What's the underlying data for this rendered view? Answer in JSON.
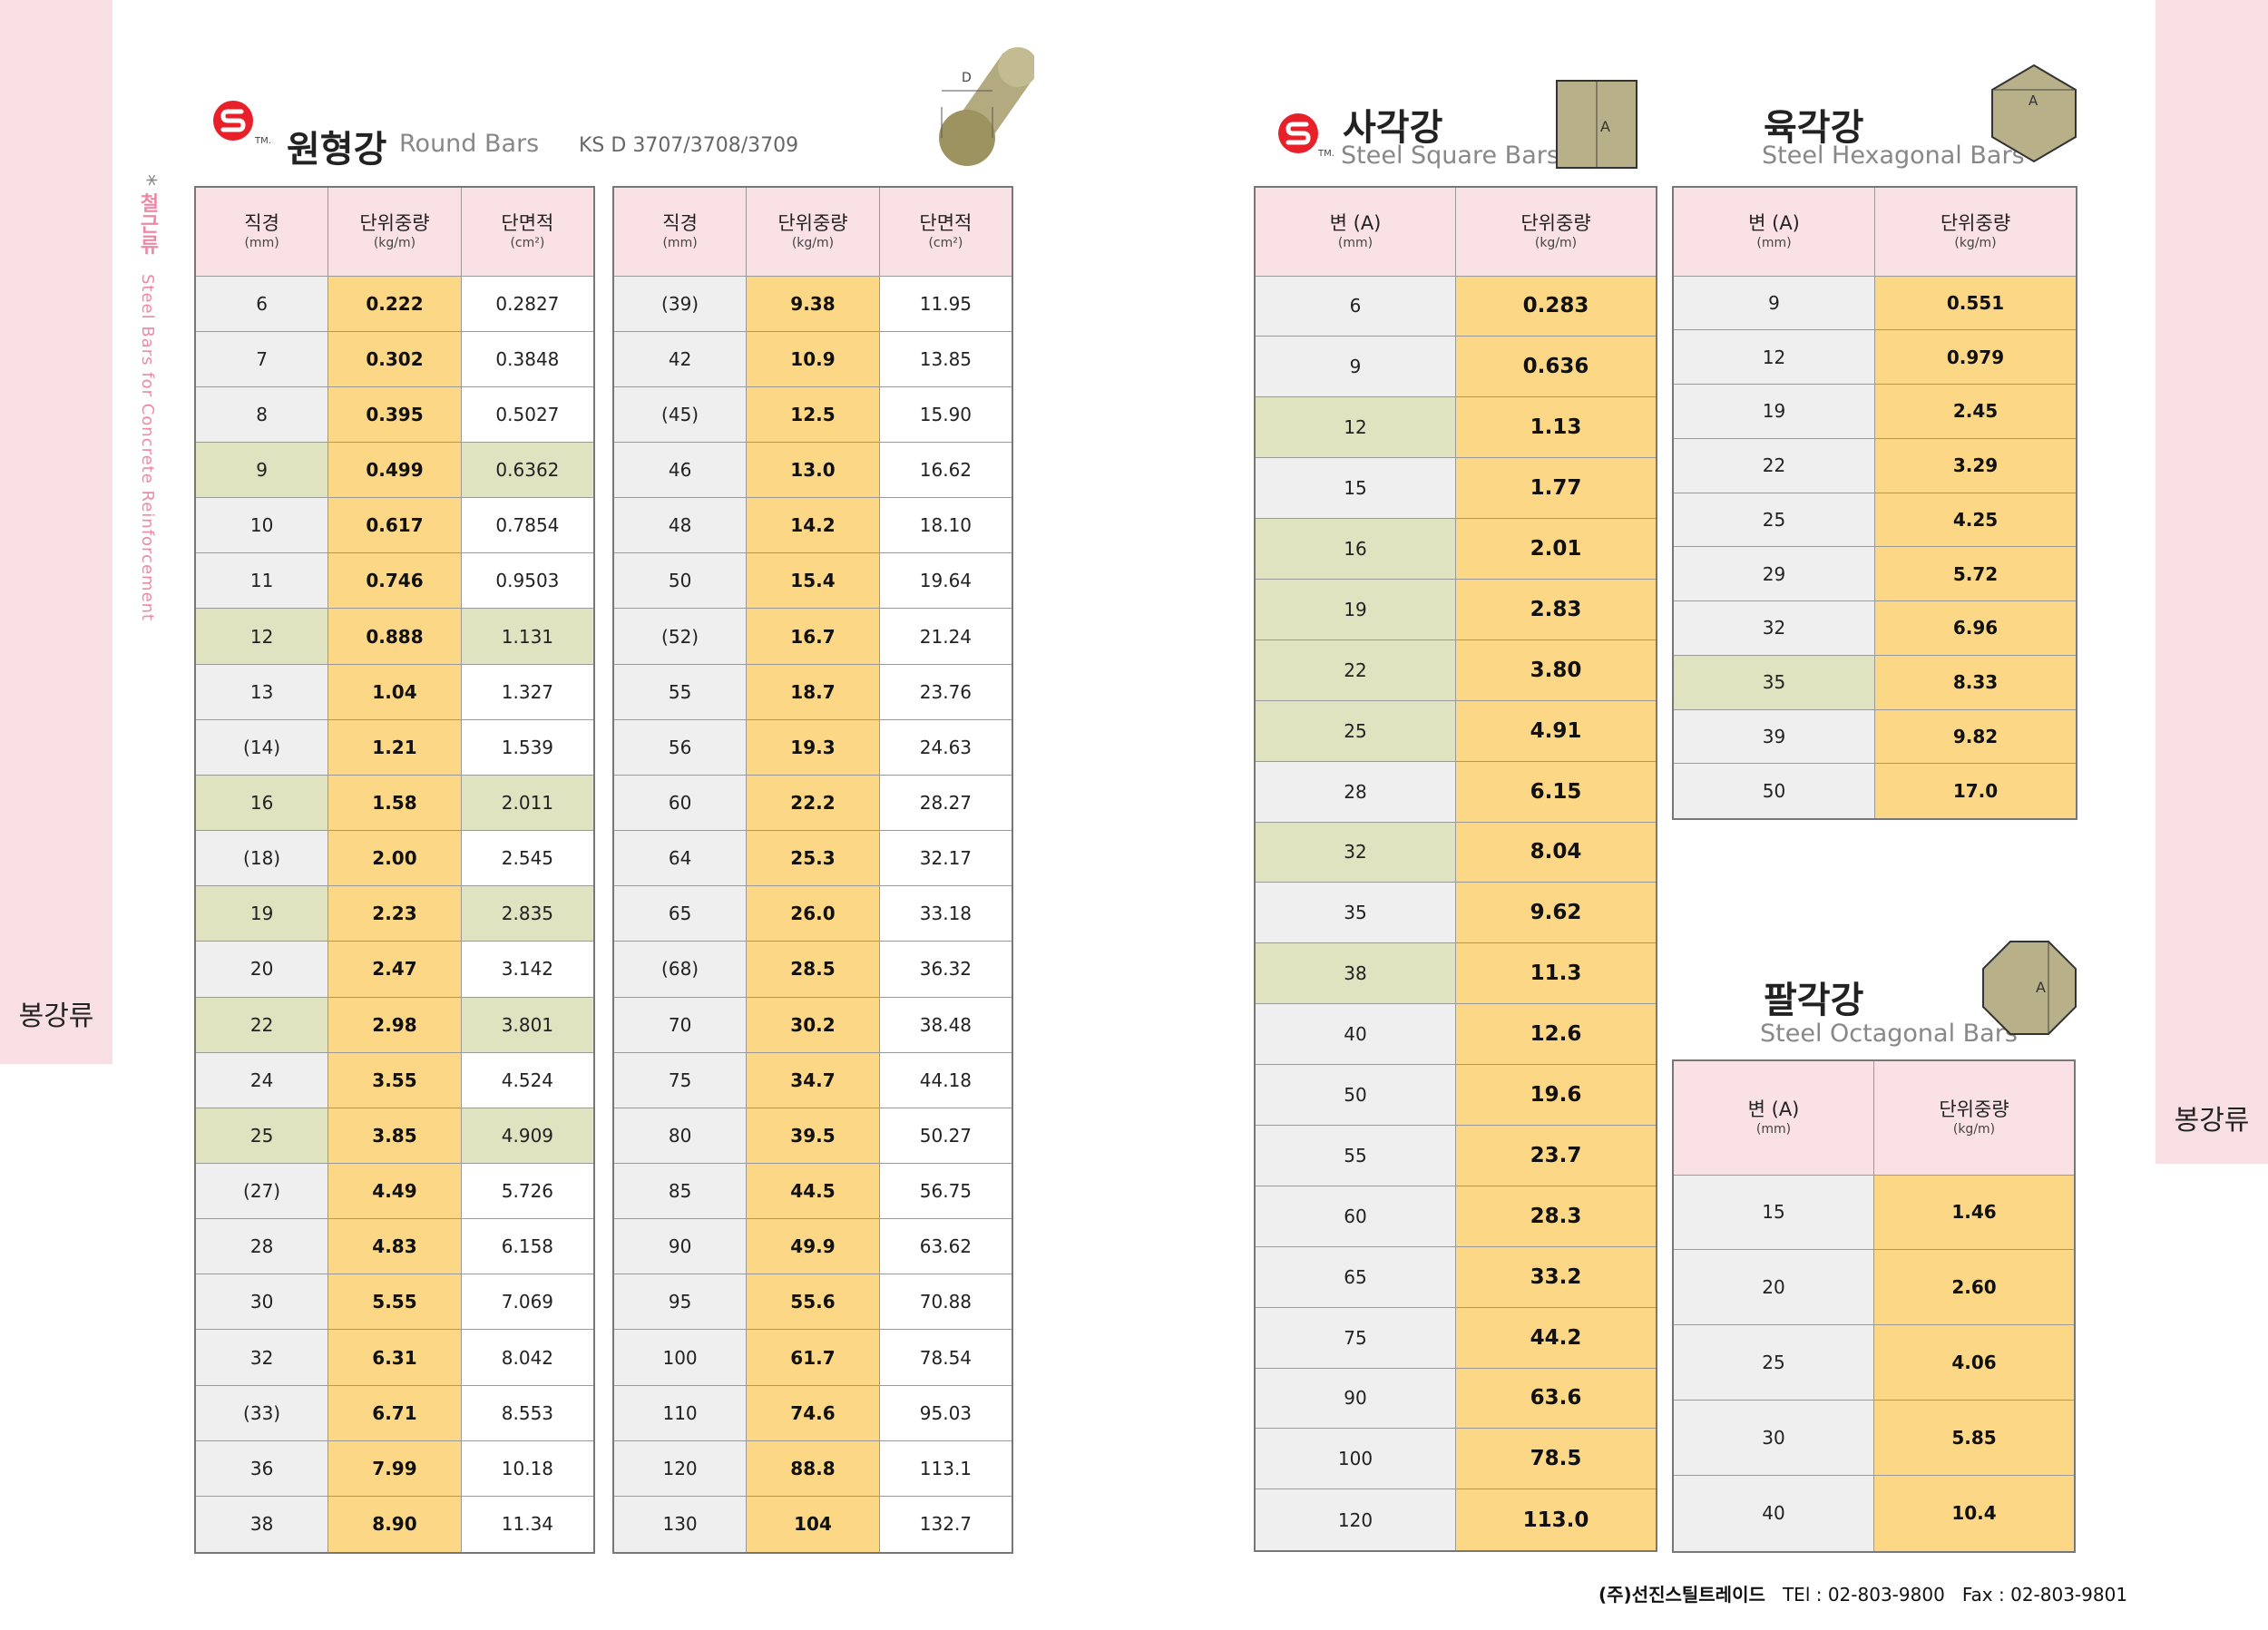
{
  "colors": {
    "pink": "#f8dfe4",
    "header": "#fae1e6",
    "yellow": "#fcd785",
    "green": "#dfe3c0",
    "gray": "#efefef",
    "logo": "#e8202a"
  },
  "side_label_left": "봉강류",
  "side_label_right": "봉강류",
  "vertical_note": {
    "star": "*",
    "ko": "철근류",
    "en": "Steel Bars for Concrete Reinforcement"
  },
  "round": {
    "title_ko": "원형강",
    "title_en": "Round Bars",
    "standard": "KS D 3707/3708/3709",
    "tm": "TM.",
    "diagram_label": "D",
    "headers": [
      {
        "main": "직경",
        "unit": "(mm)"
      },
      {
        "main": "단위중량",
        "unit": "(kg/m)"
      },
      {
        "main": "단면적",
        "unit": "(cm²)"
      }
    ],
    "left_rows": [
      {
        "c": [
          "6",
          "0.222",
          "0.2827"
        ],
        "g": false
      },
      {
        "c": [
          "7",
          "0.302",
          "0.3848"
        ],
        "g": false
      },
      {
        "c": [
          "8",
          "0.395",
          "0.5027"
        ],
        "g": false
      },
      {
        "c": [
          "9",
          "0.499",
          "0.6362"
        ],
        "g": true
      },
      {
        "c": [
          "10",
          "0.617",
          "0.7854"
        ],
        "g": false
      },
      {
        "c": [
          "11",
          "0.746",
          "0.9503"
        ],
        "g": false
      },
      {
        "c": [
          "12",
          "0.888",
          "1.131"
        ],
        "g": true
      },
      {
        "c": [
          "13",
          "1.04",
          "1.327"
        ],
        "g": false
      },
      {
        "c": [
          "(14)",
          "1.21",
          "1.539"
        ],
        "g": false
      },
      {
        "c": [
          "16",
          "1.58",
          "2.011"
        ],
        "g": true
      },
      {
        "c": [
          "(18)",
          "2.00",
          "2.545"
        ],
        "g": false
      },
      {
        "c": [
          "19",
          "2.23",
          "2.835"
        ],
        "g": true
      },
      {
        "c": [
          "20",
          "2.47",
          "3.142"
        ],
        "g": false
      },
      {
        "c": [
          "22",
          "2.98",
          "3.801"
        ],
        "g": true
      },
      {
        "c": [
          "24",
          "3.55",
          "4.524"
        ],
        "g": false
      },
      {
        "c": [
          "25",
          "3.85",
          "4.909"
        ],
        "g": true
      },
      {
        "c": [
          "(27)",
          "4.49",
          "5.726"
        ],
        "g": false
      },
      {
        "c": [
          "28",
          "4.83",
          "6.158"
        ],
        "g": false
      },
      {
        "c": [
          "30",
          "5.55",
          "7.069"
        ],
        "g": false
      },
      {
        "c": [
          "32",
          "6.31",
          "8.042"
        ],
        "g": false
      },
      {
        "c": [
          "(33)",
          "6.71",
          "8.553"
        ],
        "g": false
      },
      {
        "c": [
          "36",
          "7.99",
          "10.18"
        ],
        "g": false
      },
      {
        "c": [
          "38",
          "8.90",
          "11.34"
        ],
        "g": false
      }
    ],
    "right_rows": [
      {
        "c": [
          "(39)",
          "9.38",
          "11.95"
        ],
        "g": false
      },
      {
        "c": [
          "42",
          "10.9",
          "13.85"
        ],
        "g": false
      },
      {
        "c": [
          "(45)",
          "12.5",
          "15.90"
        ],
        "g": false
      },
      {
        "c": [
          "46",
          "13.0",
          "16.62"
        ],
        "g": false
      },
      {
        "c": [
          "48",
          "14.2",
          "18.10"
        ],
        "g": false
      },
      {
        "c": [
          "50",
          "15.4",
          "19.64"
        ],
        "g": false
      },
      {
        "c": [
          "(52)",
          "16.7",
          "21.24"
        ],
        "g": false
      },
      {
        "c": [
          "55",
          "18.7",
          "23.76"
        ],
        "g": false
      },
      {
        "c": [
          "56",
          "19.3",
          "24.63"
        ],
        "g": false
      },
      {
        "c": [
          "60",
          "22.2",
          "28.27"
        ],
        "g": false
      },
      {
        "c": [
          "64",
          "25.3",
          "32.17"
        ],
        "g": false
      },
      {
        "c": [
          "65",
          "26.0",
          "33.18"
        ],
        "g": false
      },
      {
        "c": [
          "(68)",
          "28.5",
          "36.32"
        ],
        "g": false
      },
      {
        "c": [
          "70",
          "30.2",
          "38.48"
        ],
        "g": false
      },
      {
        "c": [
          "75",
          "34.7",
          "44.18"
        ],
        "g": false
      },
      {
        "c": [
          "80",
          "39.5",
          "50.27"
        ],
        "g": false
      },
      {
        "c": [
          "85",
          "44.5",
          "56.75"
        ],
        "g": false
      },
      {
        "c": [
          "90",
          "49.9",
          "63.62"
        ],
        "g": false
      },
      {
        "c": [
          "95",
          "55.6",
          "70.88"
        ],
        "g": false
      },
      {
        "c": [
          "100",
          "61.7",
          "78.54"
        ],
        "g": false
      },
      {
        "c": [
          "110",
          "74.6",
          "95.03"
        ],
        "g": false
      },
      {
        "c": [
          "120",
          "88.8",
          "113.1"
        ],
        "g": false
      },
      {
        "c": [
          "130",
          "104",
          "132.7"
        ],
        "g": false
      }
    ]
  },
  "square": {
    "title_ko": "사각강",
    "title_en": "Steel Square Bars",
    "tm": "TM.",
    "diagram_label": "A",
    "headers": [
      {
        "main": "변 (A)",
        "unit": "(mm)"
      },
      {
        "main": "단위중량",
        "unit": "(kg/m)"
      }
    ],
    "rows": [
      {
        "c": [
          "6",
          "0.283"
        ],
        "g": false
      },
      {
        "c": [
          "9",
          "0.636"
        ],
        "g": false
      },
      {
        "c": [
          "12",
          "1.13"
        ],
        "g": true
      },
      {
        "c": [
          "15",
          "1.77"
        ],
        "g": false
      },
      {
        "c": [
          "16",
          "2.01"
        ],
        "g": true
      },
      {
        "c": [
          "19",
          "2.83"
        ],
        "g": true
      },
      {
        "c": [
          "22",
          "3.80"
        ],
        "g": true
      },
      {
        "c": [
          "25",
          "4.91"
        ],
        "g": true
      },
      {
        "c": [
          "28",
          "6.15"
        ],
        "g": false
      },
      {
        "c": [
          "32",
          "8.04"
        ],
        "g": true
      },
      {
        "c": [
          "35",
          "9.62"
        ],
        "g": false
      },
      {
        "c": [
          "38",
          "11.3"
        ],
        "g": true
      },
      {
        "c": [
          "40",
          "12.6"
        ],
        "g": false
      },
      {
        "c": [
          "50",
          "19.6"
        ],
        "g": false
      },
      {
        "c": [
          "55",
          "23.7"
        ],
        "g": false
      },
      {
        "c": [
          "60",
          "28.3"
        ],
        "g": false
      },
      {
        "c": [
          "65",
          "33.2"
        ],
        "g": false
      },
      {
        "c": [
          "75",
          "44.2"
        ],
        "g": false
      },
      {
        "c": [
          "90",
          "63.6"
        ],
        "g": false
      },
      {
        "c": [
          "100",
          "78.5"
        ],
        "g": false
      },
      {
        "c": [
          "120",
          "113.0"
        ],
        "g": false
      }
    ]
  },
  "hexagonal": {
    "title_ko": "육각강",
    "title_en": "Steel Hexagonal Bars",
    "diagram_label": "A",
    "headers": [
      {
        "main": "변 (A)",
        "unit": "(mm)"
      },
      {
        "main": "단위중량",
        "unit": "(kg/m)"
      }
    ],
    "rows": [
      {
        "c": [
          "9",
          "0.551"
        ],
        "g": false
      },
      {
        "c": [
          "12",
          "0.979"
        ],
        "g": false
      },
      {
        "c": [
          "19",
          "2.45"
        ],
        "g": false
      },
      {
        "c": [
          "22",
          "3.29"
        ],
        "g": false
      },
      {
        "c": [
          "25",
          "4.25"
        ],
        "g": false
      },
      {
        "c": [
          "29",
          "5.72"
        ],
        "g": false
      },
      {
        "c": [
          "32",
          "6.96"
        ],
        "g": false
      },
      {
        "c": [
          "35",
          "8.33"
        ],
        "g": true
      },
      {
        "c": [
          "39",
          "9.82"
        ],
        "g": false
      },
      {
        "c": [
          "50",
          "17.0"
        ],
        "g": false
      }
    ]
  },
  "octagonal": {
    "title_ko": "팔각강",
    "title_en": "Steel Octagonal Bars",
    "diagram_label": "A",
    "headers": [
      {
        "main": "변 (A)",
        "unit": "(mm)"
      },
      {
        "main": "단위중량",
        "unit": "(kg/m)"
      }
    ],
    "rows": [
      {
        "c": [
          "15",
          "1.46"
        ],
        "g": false
      },
      {
        "c": [
          "20",
          "2.60"
        ],
        "g": false
      },
      {
        "c": [
          "25",
          "4.06"
        ],
        "g": false
      },
      {
        "c": [
          "30",
          "5.85"
        ],
        "g": false
      },
      {
        "c": [
          "40",
          "10.4"
        ],
        "g": false
      }
    ]
  },
  "footer": {
    "company": "(주)선진스틸트레이드",
    "tel": "TEl : 02-803-9800",
    "fax": "Fax : 02-803-9801"
  }
}
